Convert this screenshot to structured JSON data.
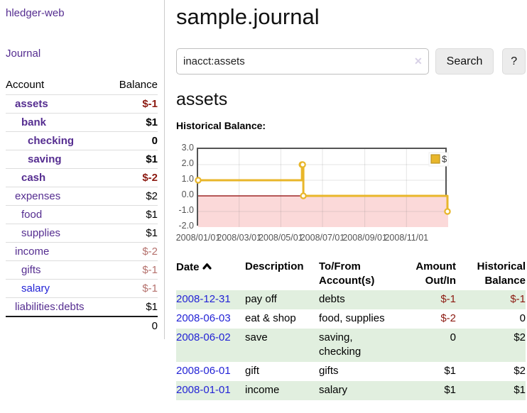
{
  "colors": {
    "link_purple": "#552d90",
    "link_blue": "#2323d6",
    "neg_strong": "#8c1a11",
    "neg_muted": "#b5716d",
    "row_green": "#e1efdf",
    "chart_line": "#e8b62a",
    "chart_pink": "#fbd9d9",
    "zero_line": "#8b0000",
    "border_dark": "#545454",
    "button_bg": "#ececec"
  },
  "sidebar": {
    "app_title": "hledger-web",
    "journal_label": "Journal",
    "accounts_table": {
      "headers": {
        "account": "Account",
        "balance": "Balance"
      },
      "rows": [
        {
          "name": "assets",
          "depth": 0,
          "bold": true,
          "balance": "$-1",
          "tone": "neg-strong",
          "link": "purple"
        },
        {
          "name": "bank",
          "depth": 1,
          "bold": true,
          "balance": "$1",
          "tone": "pos",
          "link": "purple"
        },
        {
          "name": "checking",
          "depth": 2,
          "bold": true,
          "balance": "0",
          "tone": "pos",
          "link": "purple"
        },
        {
          "name": "saving",
          "depth": 2,
          "bold": true,
          "balance": "$1",
          "tone": "pos",
          "link": "purple"
        },
        {
          "name": "cash",
          "depth": 1,
          "bold": true,
          "balance": "$-2",
          "tone": "neg-strong",
          "link": "purple"
        },
        {
          "name": "expenses",
          "depth": 0,
          "bold": false,
          "balance": "$2",
          "tone": "pos",
          "link": "purple"
        },
        {
          "name": "food",
          "depth": 1,
          "bold": false,
          "balance": "$1",
          "tone": "pos",
          "link": "purple"
        },
        {
          "name": "supplies",
          "depth": 1,
          "bold": false,
          "balance": "$1",
          "tone": "pos",
          "link": "purple"
        },
        {
          "name": "income",
          "depth": 0,
          "bold": false,
          "balance": "$-2",
          "tone": "neg-muted",
          "link": "purple"
        },
        {
          "name": "gifts",
          "depth": 1,
          "bold": false,
          "balance": "$-1",
          "tone": "neg-muted",
          "link": "purple"
        },
        {
          "name": "salary",
          "depth": 1,
          "bold": false,
          "balance": "$-1",
          "tone": "neg-muted",
          "link": "blue"
        },
        {
          "name": "liabilities:debts",
          "depth": 0,
          "bold": false,
          "balance": "$1",
          "tone": "pos",
          "link": "purple"
        }
      ],
      "total": "0"
    }
  },
  "main": {
    "title": "sample.journal",
    "search": {
      "value": "inacct:assets",
      "clear_icon": "✕",
      "button_label": "Search",
      "help_label": "?"
    },
    "section_title": "assets",
    "chart_label": "Historical Balance:",
    "register_table": {
      "headers": {
        "date": "Date",
        "description": "Description",
        "tofrom1": "To/From",
        "tofrom2": "Account(s)",
        "amount1": "Amount",
        "amount2": "Out/In",
        "balance1": "Historical",
        "balance2": "Balance"
      },
      "rows": [
        {
          "date": "2008-12-31",
          "description": "pay off",
          "accounts": "debts",
          "amount": "$-1",
          "amount_tone": "neg",
          "balance": "$-1",
          "balance_tone": "neg",
          "highlight": true
        },
        {
          "date": "2008-06-03",
          "description": "eat & shop",
          "accounts": "food, supplies",
          "amount": "$-2",
          "amount_tone": "neg",
          "balance": "0",
          "balance_tone": "pos",
          "highlight": false
        },
        {
          "date": "2008-06-02",
          "description": "save",
          "accounts": "saving, checking",
          "amount": "0",
          "amount_tone": "pos",
          "balance": "$2",
          "balance_tone": "pos",
          "highlight": true
        },
        {
          "date": "2008-06-01",
          "description": "gift",
          "accounts": "gifts",
          "amount": "$1",
          "amount_tone": "pos",
          "balance": "$2",
          "balance_tone": "pos",
          "highlight": false
        },
        {
          "date": "2008-01-01",
          "description": "income",
          "accounts": "salary",
          "amount": "$1",
          "amount_tone": "pos",
          "balance": "$1",
          "balance_tone": "pos",
          "highlight": true
        }
      ]
    }
  },
  "chart_data": {
    "type": "line",
    "title": "Historical Balance",
    "step": true,
    "series": [
      {
        "name": "$",
        "points": [
          [
            "2008-01-01",
            1
          ],
          [
            "2008-06-01",
            2
          ],
          [
            "2008-06-02",
            2
          ],
          [
            "2008-06-03",
            0
          ],
          [
            "2008-12-31",
            -1
          ]
        ]
      }
    ],
    "x_range": [
      "2008-01-01",
      "2008-12-31"
    ],
    "x_ticks": [
      {
        "date": "2008-01-01",
        "label": "2008/01/01"
      },
      {
        "date": "2008-03-01",
        "label": "2008/03/01"
      },
      {
        "date": "2008-05-01",
        "label": "2008/05/01"
      },
      {
        "date": "2008-07-01",
        "label": "2008/07/01"
      },
      {
        "date": "2008-09-01",
        "label": "2008/09/01"
      },
      {
        "date": "2008-11-01",
        "label": "2008/11/01"
      }
    ],
    "y_ticks": [
      3.0,
      2.0,
      1.0,
      0.0,
      -1.0,
      -2.0
    ],
    "ylim": [
      -2,
      3
    ],
    "negative_region_shaded": true,
    "grid": true,
    "legend": {
      "label": "$",
      "position": "top-right"
    }
  }
}
